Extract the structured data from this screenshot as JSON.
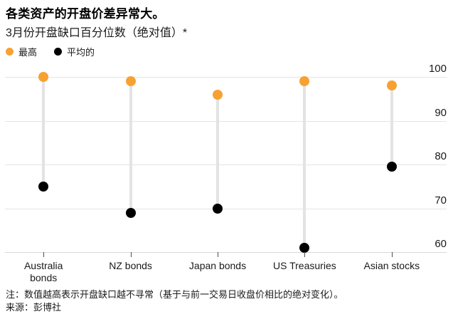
{
  "header": {
    "title": "各类资产的开盘价差异常大。",
    "subtitle": "3月份开盘缺口百分位数（绝对值）*"
  },
  "chart_data": {
    "type": "scatter",
    "subtype": "dot-range",
    "title": "各类资产的开盘价差异常大。",
    "subtitle": "3月份开盘缺口百分位数（绝对值）*",
    "categories": [
      "Australia\nbonds",
      "NZ bonds",
      "Japan bonds",
      "US Treasuries",
      "Asian stocks"
    ],
    "series": [
      {
        "name": "最高",
        "color": "#F7A132",
        "values": [
          100,
          99,
          96,
          99,
          98
        ]
      },
      {
        "name": "平均的",
        "color": "#000000",
        "values": [
          75,
          69,
          70,
          61,
          79.5
        ]
      }
    ],
    "ylim": [
      60,
      100
    ],
    "yticks": [
      60,
      70,
      80,
      90,
      100
    ],
    "ytick_side": "right",
    "grid": "horizontal",
    "legend_position": "top-left"
  },
  "footer": {
    "note": "注：数值越高表示开盘缺口越不寻常（基于与前一交易日收盘价相比的绝对变化）。",
    "source": "来源：彭博社"
  }
}
